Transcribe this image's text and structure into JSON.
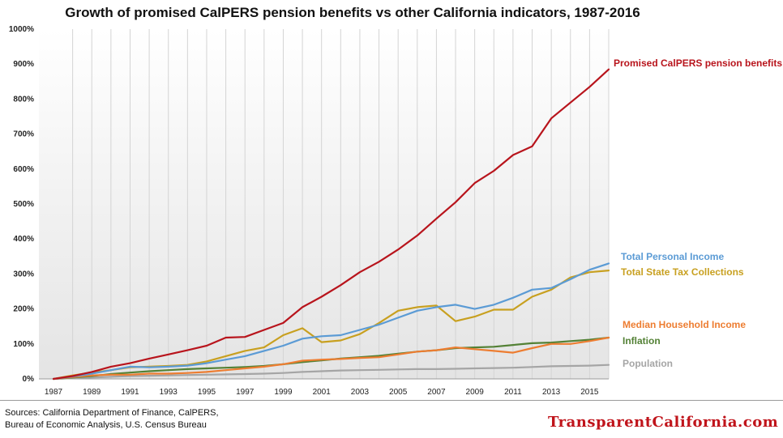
{
  "chart_data": {
    "type": "line",
    "title": "Growth of promised CalPERS pension benefits vs other California indicators, 1987-2016",
    "xlabel": "",
    "ylabel": "",
    "x": [
      1987,
      1988,
      1989,
      1990,
      1991,
      1992,
      1993,
      1994,
      1995,
      1996,
      1997,
      1998,
      1999,
      2000,
      2001,
      2002,
      2003,
      2004,
      2005,
      2006,
      2007,
      2008,
      2009,
      2010,
      2011,
      2012,
      2013,
      2014,
      2015,
      2016
    ],
    "x_ticks": [
      "1987",
      "1989",
      "1991",
      "1993",
      "1995",
      "1997",
      "1999",
      "2001",
      "2003",
      "2005",
      "2007",
      "2009",
      "2011",
      "2013",
      "2015"
    ],
    "y_ticks": [
      "0%",
      "100%",
      "200%",
      "300%",
      "400%",
      "500%",
      "600%",
      "700%",
      "800%",
      "900%",
      "1000%"
    ],
    "ylim": [
      0,
      1000
    ],
    "grid": "vertical",
    "series": [
      {
        "name": "Promised CalPERS  pension benefits",
        "color": "#b8141c",
        "values": [
          0,
          8,
          20,
          35,
          45,
          58,
          70,
          82,
          95,
          118,
          120,
          140,
          160,
          205,
          235,
          268,
          305,
          335,
          370,
          410,
          458,
          505,
          560,
          595,
          640,
          665,
          745,
          790,
          835,
          885
        ]
      },
      {
        "name": "Total Personal Income",
        "color": "#5b9bd5",
        "values": [
          0,
          7,
          15,
          25,
          35,
          33,
          35,
          38,
          45,
          55,
          65,
          80,
          95,
          115,
          122,
          125,
          140,
          155,
          175,
          195,
          205,
          212,
          200,
          212,
          232,
          255,
          260,
          285,
          312,
          330
        ]
      },
      {
        "name": "Total  State Tax Collections",
        "color": "#c8a020",
        "values": [
          0,
          10,
          18,
          25,
          33,
          35,
          37,
          40,
          50,
          65,
          80,
          90,
          125,
          145,
          105,
          110,
          128,
          160,
          195,
          205,
          210,
          165,
          178,
          198,
          198,
          235,
          255,
          290,
          305,
          310
        ]
      },
      {
        "name": "Median Household  Income",
        "color": "#ed7d31",
        "values": [
          0,
          5,
          10,
          12,
          12,
          15,
          15,
          17,
          20,
          25,
          30,
          35,
          42,
          52,
          55,
          57,
          60,
          62,
          70,
          78,
          82,
          90,
          85,
          80,
          75,
          88,
          100,
          100,
          108,
          118
        ]
      },
      {
        "name": "Inflation",
        "color": "#538135",
        "values": [
          0,
          4,
          8,
          14,
          18,
          22,
          25,
          28,
          30,
          32,
          34,
          37,
          42,
          48,
          53,
          58,
          62,
          66,
          72,
          78,
          82,
          88,
          90,
          92,
          97,
          102,
          104,
          108,
          112,
          118
        ]
      },
      {
        "name": "Population",
        "color": "#a5a5a5",
        "values": [
          0,
          2,
          4,
          6,
          8,
          9,
          10,
          11,
          12,
          13,
          14,
          15,
          17,
          20,
          22,
          24,
          25,
          26,
          27,
          28,
          28,
          29,
          30,
          31,
          32,
          34,
          36,
          37,
          38,
          40
        ]
      }
    ]
  },
  "footer": {
    "sources_line1": "Sources: California Department of Finance, CalPERS,",
    "sources_line2": "Bureau of Economic Analysis, U.S. Census Bureau",
    "brand": "TransparentCalifornia.com"
  }
}
